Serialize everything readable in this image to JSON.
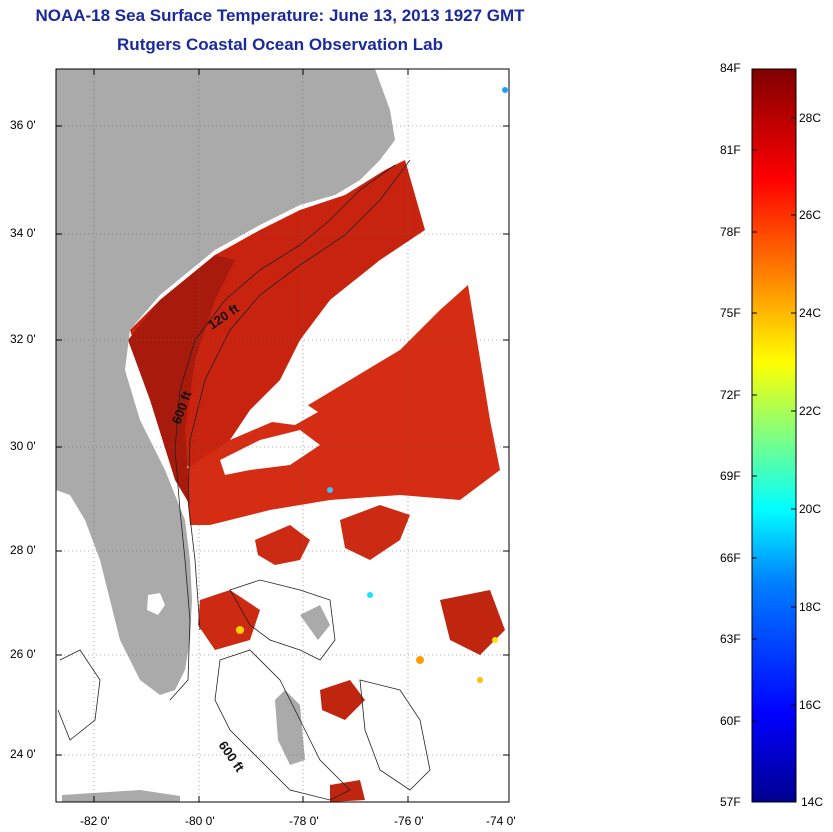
{
  "title_line1": "NOAA-18 Sea Surface Temperature:  June 13, 2013 1927 GMT",
  "title_line2": "Rutgers Coastal Ocean Observation Lab",
  "lat_ticks": [
    "36 0'",
    "34 0'",
    "32 0'",
    "30 0'",
    "28 0'",
    "26 0'",
    "24 0'"
  ],
  "lon_ticks": [
    "-82 0'",
    "-80 0'",
    "-78 0'",
    "-76 0'",
    "-74 0'"
  ],
  "contours": [
    "120 ft",
    "600 ft",
    "600 ft"
  ],
  "colorbar": {
    "fahrenheit": [
      "84F",
      "81F",
      "78F",
      "75F",
      "72F",
      "69F",
      "66F",
      "63F",
      "60F",
      "57F"
    ],
    "celsius": [
      "28C",
      "26C",
      "24C",
      "22C",
      "20C",
      "18C",
      "16C",
      "14C"
    ],
    "colors": [
      "#00008f",
      "#0000ff",
      "#0080ff",
      "#00ffff",
      "#80ff80",
      "#ffff00",
      "#ff8000",
      "#ff0000",
      "#800000"
    ]
  }
}
